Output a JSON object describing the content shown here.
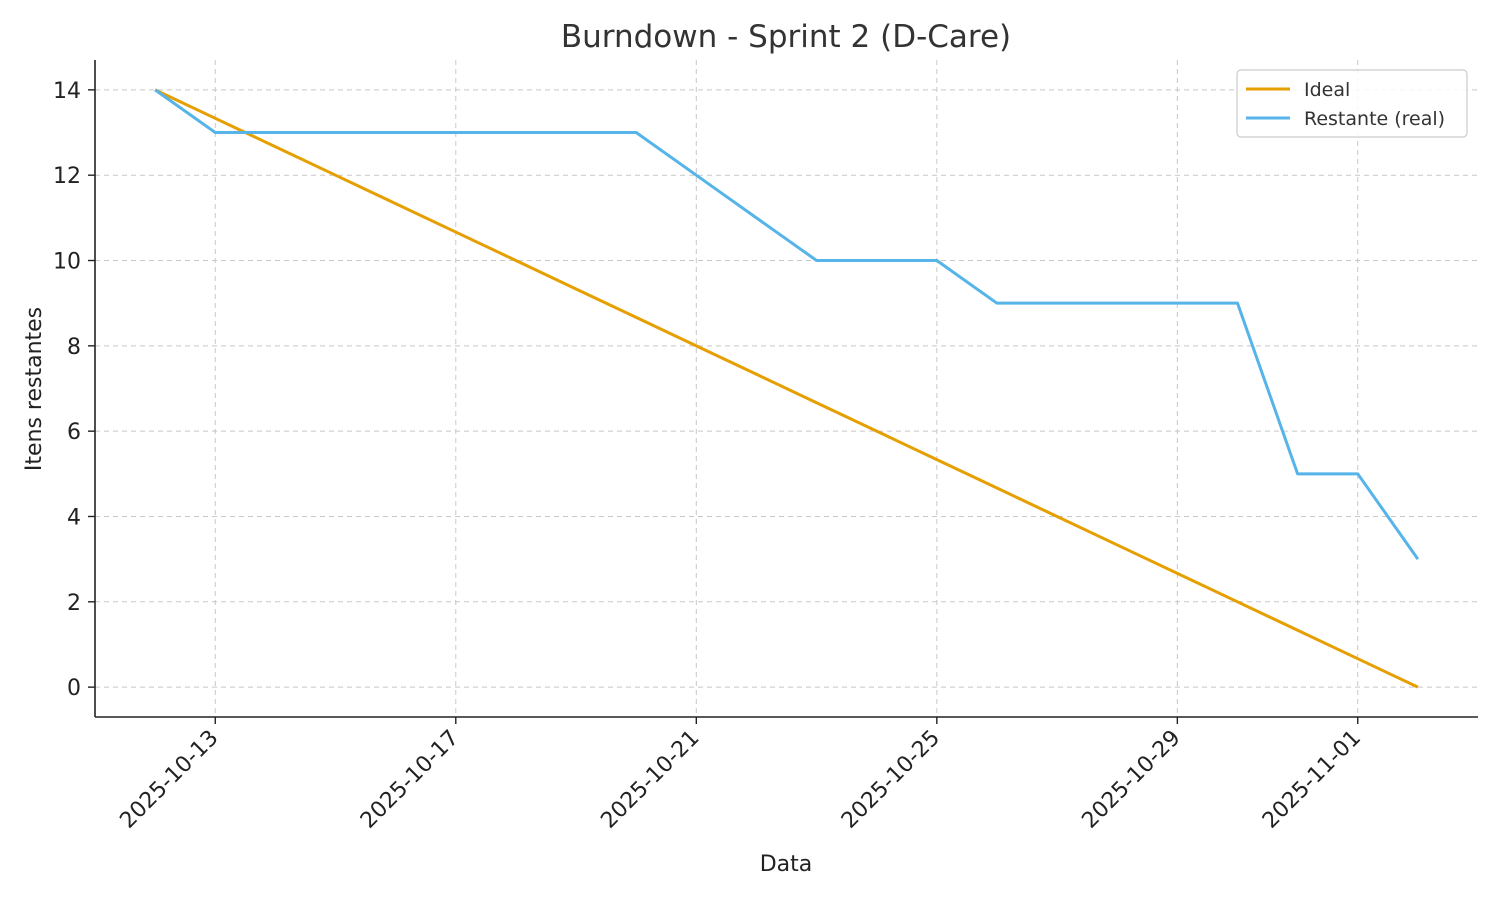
{
  "chart_data": {
    "type": "line",
    "title": "Burndown - Sprint 2 (D-Care)",
    "xlabel": "Data",
    "ylabel": "Itens restantes",
    "x_type": "date",
    "xlim": [
      "2025-10-11",
      "2025-11-03"
    ],
    "ylim": [
      -0.7,
      14.7
    ],
    "x_ticks": [
      "2025-10-13",
      "2025-10-17",
      "2025-10-21",
      "2025-10-25",
      "2025-10-29",
      "2025-11-01"
    ],
    "y_ticks": [
      0,
      2,
      4,
      6,
      8,
      10,
      12,
      14
    ],
    "grid": true,
    "legend_position": "top-right",
    "x": [
      "2025-10-12",
      "2025-10-13",
      "2025-10-14",
      "2025-10-15",
      "2025-10-16",
      "2025-10-17",
      "2025-10-18",
      "2025-10-19",
      "2025-10-20",
      "2025-10-21",
      "2025-10-22",
      "2025-10-23",
      "2025-10-24",
      "2025-10-25",
      "2025-10-26",
      "2025-10-27",
      "2025-10-28",
      "2025-10-29",
      "2025-10-30",
      "2025-10-31",
      "2025-11-01",
      "2025-11-02"
    ],
    "series": [
      {
        "name": "Ideal",
        "color": "#E69F00",
        "values": [
          14,
          13.333,
          12.667,
          12,
          11.333,
          10.667,
          10,
          9.333,
          8.667,
          8,
          7.333,
          6.667,
          6,
          5.333,
          4.667,
          4,
          3.333,
          2.667,
          2,
          1.333,
          0.667,
          0
        ]
      },
      {
        "name": "Restante (real)",
        "color": "#56B4E9",
        "values": [
          14,
          13,
          13,
          13,
          13,
          13,
          13,
          13,
          13,
          12,
          11,
          10,
          10,
          10,
          9,
          9,
          9,
          9,
          9,
          5,
          5,
          3
        ]
      }
    ]
  }
}
